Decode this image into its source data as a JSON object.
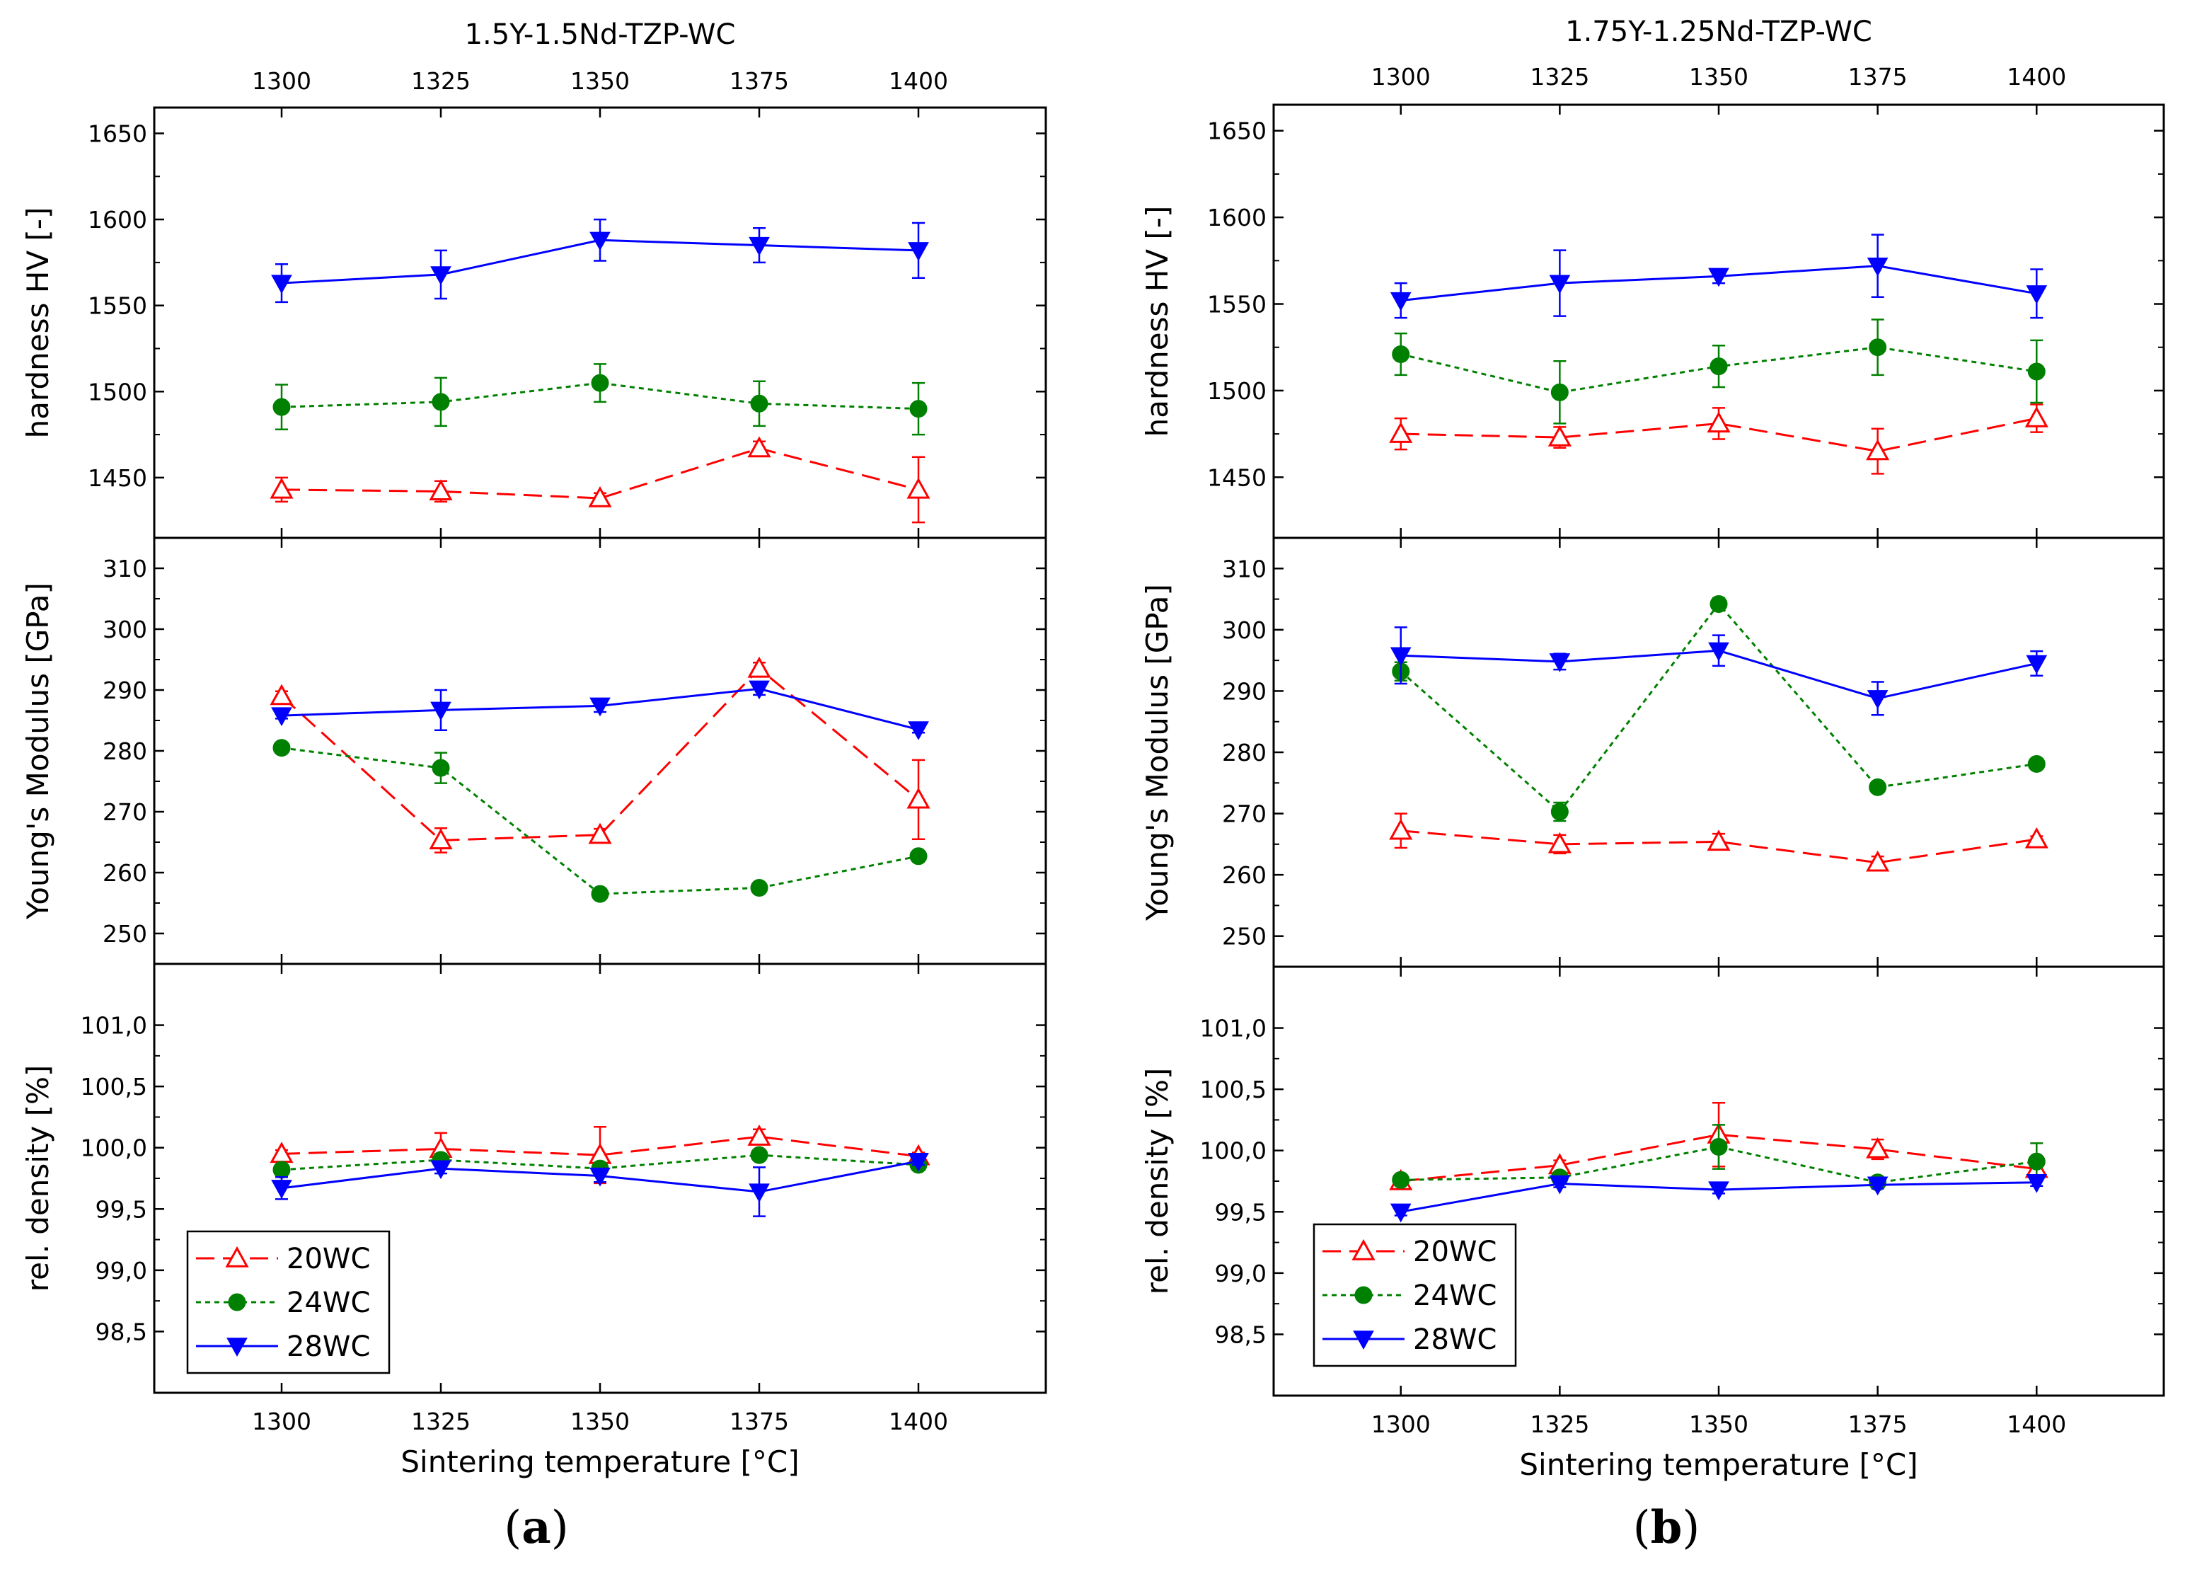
{
  "colors": {
    "series_20WC": "#ff0000",
    "series_24WC": "#008000",
    "series_28WC": "#0000ff",
    "axis": "#000000"
  },
  "x_ticks": [
    "1300",
    "1325",
    "1350",
    "1375",
    "1400"
  ],
  "x_label": "Sintering temperature [°C]",
  "legend": [
    {
      "key": "20WC",
      "label": "20WC",
      "marker": "open-triangle-up",
      "line": "dashed"
    },
    {
      "key": "24WC",
      "label": "24WC",
      "marker": "filled-circle",
      "line": "dotted"
    },
    {
      "key": "28WC",
      "label": "28WC",
      "marker": "filled-triangle-down",
      "line": "solid"
    }
  ],
  "chart_data": [
    {
      "id": "a",
      "caption_letter": "a",
      "title": "1.5Y-1.5Nd-TZP-WC",
      "type": "line",
      "x": [
        1300,
        1325,
        1350,
        1375,
        1400
      ],
      "xlim": [
        1280,
        1420
      ],
      "panels": [
        {
          "key": "hardness",
          "ylabel": "hardness HV [-]",
          "ylim": [
            1415,
            1665
          ],
          "yticks": [
            {
              "v": 1450,
              "t": "1450"
            },
            {
              "v": 1500,
              "t": "1500"
            },
            {
              "v": 1550,
              "t": "1550"
            },
            {
              "v": 1600,
              "t": "1600"
            },
            {
              "v": 1650,
              "t": "1650"
            }
          ],
          "series": [
            {
              "name": "20WC",
              "values": [
                1443,
                1442,
                1438,
                1467,
                1443
              ],
              "errors": [
                7,
                6,
                3,
                4,
                19
              ]
            },
            {
              "name": "24WC",
              "values": [
                1491,
                1494,
                1505,
                1493,
                1490
              ],
              "errors": [
                13,
                14,
                11,
                13,
                15
              ]
            },
            {
              "name": "28WC",
              "values": [
                1563,
                1568,
                1588,
                1585,
                1582
              ],
              "errors": [
                11,
                14,
                12,
                10,
                16
              ]
            }
          ]
        },
        {
          "key": "modulus",
          "ylabel": "Young's Modulus [GPa]",
          "ylim": [
            245,
            315
          ],
          "yticks": [
            {
              "v": 250,
              "t": "250"
            },
            {
              "v": 260,
              "t": "260"
            },
            {
              "v": 270,
              "t": "270"
            },
            {
              "v": 280,
              "t": "280"
            },
            {
              "v": 290,
              "t": "290"
            },
            {
              "v": 300,
              "t": "300"
            },
            {
              "v": 310,
              "t": "310"
            }
          ],
          "series": [
            {
              "name": "20WC",
              "values": [
                289,
                265.3,
                266.2,
                293.5,
                272
              ],
              "errors": [
                0.8,
                2,
                1,
                1,
                6.5
              ]
            },
            {
              "name": "24WC",
              "values": [
                280.5,
                277.2,
                256.5,
                257.5,
                262.7
              ],
              "errors": [
                0.5,
                2.5,
                0.5,
                0.5,
                0.5
              ]
            },
            {
              "name": "28WC",
              "values": [
                285.8,
                286.7,
                287.4,
                290.2,
                283.5
              ],
              "errors": [
                0.5,
                3.3,
                1,
                1,
                0.5
              ]
            }
          ]
        },
        {
          "key": "density",
          "ylabel": "rel. density [%]",
          "ylim": [
            98.0,
            101.5
          ],
          "yticks": [
            {
              "v": 98.5,
              "t": "98,5"
            },
            {
              "v": 99.0,
              "t": "99,0"
            },
            {
              "v": 99.5,
              "t": "99,5"
            },
            {
              "v": 100.0,
              "t": "100,0"
            },
            {
              "v": 100.5,
              "t": "100,5"
            },
            {
              "v": 101.0,
              "t": "101,0"
            }
          ],
          "series": [
            {
              "name": "20WC",
              "values": [
                99.95,
                99.99,
                99.94,
                100.09,
                99.93
              ],
              "errors": [
                0.03,
                0.13,
                0.23,
                0.06,
                0.03
              ]
            },
            {
              "name": "24WC",
              "values": [
                99.82,
                99.9,
                99.83,
                99.94,
                99.86
              ],
              "errors": [
                0.03,
                0.05,
                0.04,
                0.03,
                0.03
              ]
            },
            {
              "name": "28WC",
              "values": [
                99.67,
                99.83,
                99.77,
                99.64,
                99.89
              ],
              "errors": [
                0.09,
                0.04,
                0.05,
                0.2,
                0.03
              ]
            }
          ]
        }
      ]
    },
    {
      "id": "b",
      "caption_letter": "b",
      "title": "1.75Y-1.25Nd-TZP-WC",
      "type": "line",
      "x": [
        1300,
        1325,
        1350,
        1375,
        1400
      ],
      "xlim": [
        1280,
        1420
      ],
      "panels": [
        {
          "key": "hardness",
          "ylabel": "hardness HV [-]",
          "ylim": [
            1415,
            1665
          ],
          "yticks": [
            {
              "v": 1450,
              "t": "1450"
            },
            {
              "v": 1500,
              "t": "1500"
            },
            {
              "v": 1550,
              "t": "1550"
            },
            {
              "v": 1600,
              "t": "1600"
            },
            {
              "v": 1650,
              "t": "1650"
            }
          ],
          "series": [
            {
              "name": "20WC",
              "values": [
                1475,
                1473,
                1481,
                1465,
                1484
              ],
              "errors": [
                9,
                6,
                9,
                13,
                8
              ]
            },
            {
              "name": "24WC",
              "values": [
                1521,
                1499,
                1514,
                1525,
                1511
              ],
              "errors": [
                12,
                18,
                12,
                16,
                18
              ]
            },
            {
              "name": "28WC",
              "values": [
                1552,
                1562,
                1566,
                1572,
                1556
              ],
              "errors": [
                10,
                19,
                4,
                18,
                14
              ]
            }
          ]
        },
        {
          "key": "modulus",
          "ylabel": "Young's Modulus [GPa]",
          "ylim": [
            245,
            315
          ],
          "yticks": [
            {
              "v": 250,
              "t": "250"
            },
            {
              "v": 260,
              "t": "260"
            },
            {
              "v": 270,
              "t": "270"
            },
            {
              "v": 280,
              "t": "280"
            },
            {
              "v": 290,
              "t": "290"
            },
            {
              "v": 300,
              "t": "300"
            },
            {
              "v": 310,
              "t": "310"
            }
          ],
          "series": [
            {
              "name": "20WC",
              "values": [
                267.2,
                265,
                265.4,
                262,
                265.8
              ],
              "errors": [
                2.8,
                1.5,
                1.3,
                1,
                0.5
              ]
            },
            {
              "name": "24WC",
              "values": [
                293.2,
                270.3,
                304.2,
                274.3,
                278.1
              ],
              "errors": [
                1.5,
                1.5,
                1,
                0.5,
                0.5
              ]
            },
            {
              "name": "28WC",
              "values": [
                295.8,
                294.8,
                296.6,
                288.8,
                294.5
              ],
              "errors": [
                4.6,
                1.3,
                2.5,
                2.7,
                2
              ]
            }
          ]
        },
        {
          "key": "density",
          "ylabel": "rel. density [%]",
          "ylim": [
            98.0,
            101.5
          ],
          "yticks": [
            {
              "v": 98.5,
              "t": "98,5"
            },
            {
              "v": 99.0,
              "t": "99,0"
            },
            {
              "v": 99.5,
              "t": "99,5"
            },
            {
              "v": 100.0,
              "t": "100,0"
            },
            {
              "v": 100.5,
              "t": "100,5"
            },
            {
              "v": 101.0,
              "t": "101,0"
            }
          ],
          "series": [
            {
              "name": "20WC",
              "values": [
                99.75,
                99.88,
                100.13,
                100.01,
                99.85
              ],
              "errors": [
                0.04,
                0.04,
                0.26,
                0.08,
                0.04
              ]
            },
            {
              "name": "24WC",
              "values": [
                99.76,
                99.78,
                100.03,
                99.74,
                99.91
              ],
              "errors": [
                0.03,
                0.03,
                0.18,
                0.03,
                0.15
              ]
            },
            {
              "name": "28WC",
              "values": [
                99.5,
                99.73,
                99.68,
                99.72,
                99.74
              ],
              "errors": [
                0.03,
                0.03,
                0.03,
                0.03,
                0.03
              ]
            }
          ]
        }
      ]
    }
  ]
}
